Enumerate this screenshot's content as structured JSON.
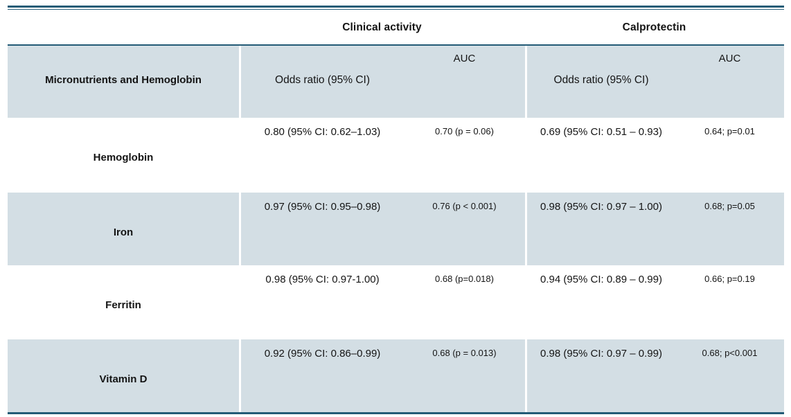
{
  "table": {
    "groups": [
      {
        "label": "Clinical activity"
      },
      {
        "label": "Calprotectin"
      }
    ],
    "stub_header": "Micronutrients and Hemoglobin",
    "col_headers": {
      "odds_ratio": "Odds ratio (95% CI)",
      "auc": "AUC"
    },
    "rows": [
      {
        "label": "Hemoglobin",
        "clinical_or": "0.80 (95% CI: 0.62–1.03)",
        "clinical_auc": "0.70 (p = 0.06)",
        "calprotectin_or": "0.69 (95% CI: 0.51 – 0.93)",
        "calprotectin_auc": "0.64; p=0.01"
      },
      {
        "label": "Iron",
        "clinical_or": "0.97 (95% CI: 0.95–0.98)",
        "clinical_auc": "0.76 (p < 0.001)",
        "calprotectin_or": "0.98 (95% CI: 0.97 – 1.00)",
        "calprotectin_auc": "0.68; p=0.05"
      },
      {
        "label": "Ferritin",
        "clinical_or": "0.98 (95% CI: 0.97-1.00)",
        "clinical_auc": "0.68 (p=0.018)",
        "calprotectin_or": "0.94 (95% CI: 0.89 – 0.99)",
        "calprotectin_auc": "0.66; p=0.19"
      },
      {
        "label": "Vitamin D",
        "clinical_or": "0.92 (95% CI: 0.86–0.99)",
        "clinical_auc": "0.68 (p = 0.013)",
        "calprotectin_or": "0.98 (95% CI: 0.97 – 0.99)",
        "calprotectin_auc": "0.68; p<0.001"
      }
    ],
    "colors": {
      "shaded_row_bg": "#d3dee4",
      "rule": "#235b76",
      "text": "#141414"
    }
  }
}
